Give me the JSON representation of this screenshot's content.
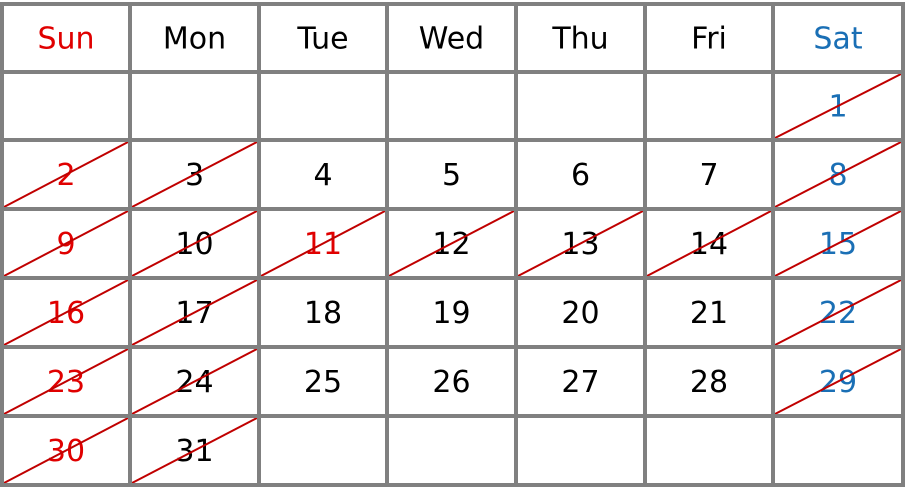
{
  "header": {
    "days": [
      {
        "text": "Sun",
        "color": "#e00000"
      },
      {
        "text": "Mon",
        "color": "#000000"
      },
      {
        "text": "Tue",
        "color": "#000000"
      },
      {
        "text": "Wed",
        "color": "#000000"
      },
      {
        "text": "Thu",
        "color": "#000000"
      },
      {
        "text": "Fri",
        "color": "#000000"
      },
      {
        "text": "Sat",
        "color": "#1a6fb5"
      }
    ]
  },
  "weeks": [
    [
      null,
      null,
      null,
      null,
      null,
      null,
      {
        "text": "1",
        "color": "#1a6fb5",
        "crossed": true
      }
    ],
    [
      {
        "text": "2",
        "color": "#e00000",
        "crossed": true
      },
      {
        "text": "3",
        "color": "#000000",
        "crossed": true
      },
      {
        "text": "4",
        "color": "#000000",
        "crossed": false
      },
      {
        "text": "5",
        "color": "#000000",
        "crossed": false
      },
      {
        "text": "6",
        "color": "#000000",
        "crossed": false
      },
      {
        "text": "7",
        "color": "#000000",
        "crossed": false
      },
      {
        "text": "8",
        "color": "#1a6fb5",
        "crossed": true
      }
    ],
    [
      {
        "text": "9",
        "color": "#e00000",
        "crossed": true
      },
      {
        "text": "10",
        "color": "#000000",
        "crossed": true
      },
      {
        "text": "11",
        "color": "#e00000",
        "crossed": true
      },
      {
        "text": "12",
        "color": "#000000",
        "crossed": true
      },
      {
        "text": "13",
        "color": "#000000",
        "crossed": true
      },
      {
        "text": "14",
        "color": "#000000",
        "crossed": true
      },
      {
        "text": "15",
        "color": "#1a6fb5",
        "crossed": true
      }
    ],
    [
      {
        "text": "16",
        "color": "#e00000",
        "crossed": true
      },
      {
        "text": "17",
        "color": "#000000",
        "crossed": true
      },
      {
        "text": "18",
        "color": "#000000",
        "crossed": false
      },
      {
        "text": "19",
        "color": "#000000",
        "crossed": false
      },
      {
        "text": "20",
        "color": "#000000",
        "crossed": false
      },
      {
        "text": "21",
        "color": "#000000",
        "crossed": false
      },
      {
        "text": "22",
        "color": "#1a6fb5",
        "crossed": true
      }
    ],
    [
      {
        "text": "23",
        "color": "#e00000",
        "crossed": true
      },
      {
        "text": "24",
        "color": "#000000",
        "crossed": true
      },
      {
        "text": "25",
        "color": "#000000",
        "crossed": false
      },
      {
        "text": "26",
        "color": "#000000",
        "crossed": false
      },
      {
        "text": "27",
        "color": "#000000",
        "crossed": false
      },
      {
        "text": "28",
        "color": "#000000",
        "crossed": false
      },
      {
        "text": "29",
        "color": "#1a6fb5",
        "crossed": true
      }
    ],
    [
      {
        "text": "30",
        "color": "#e00000",
        "crossed": true
      },
      {
        "text": "31",
        "color": "#000000",
        "crossed": true
      },
      null,
      null,
      null,
      null,
      null
    ]
  ]
}
